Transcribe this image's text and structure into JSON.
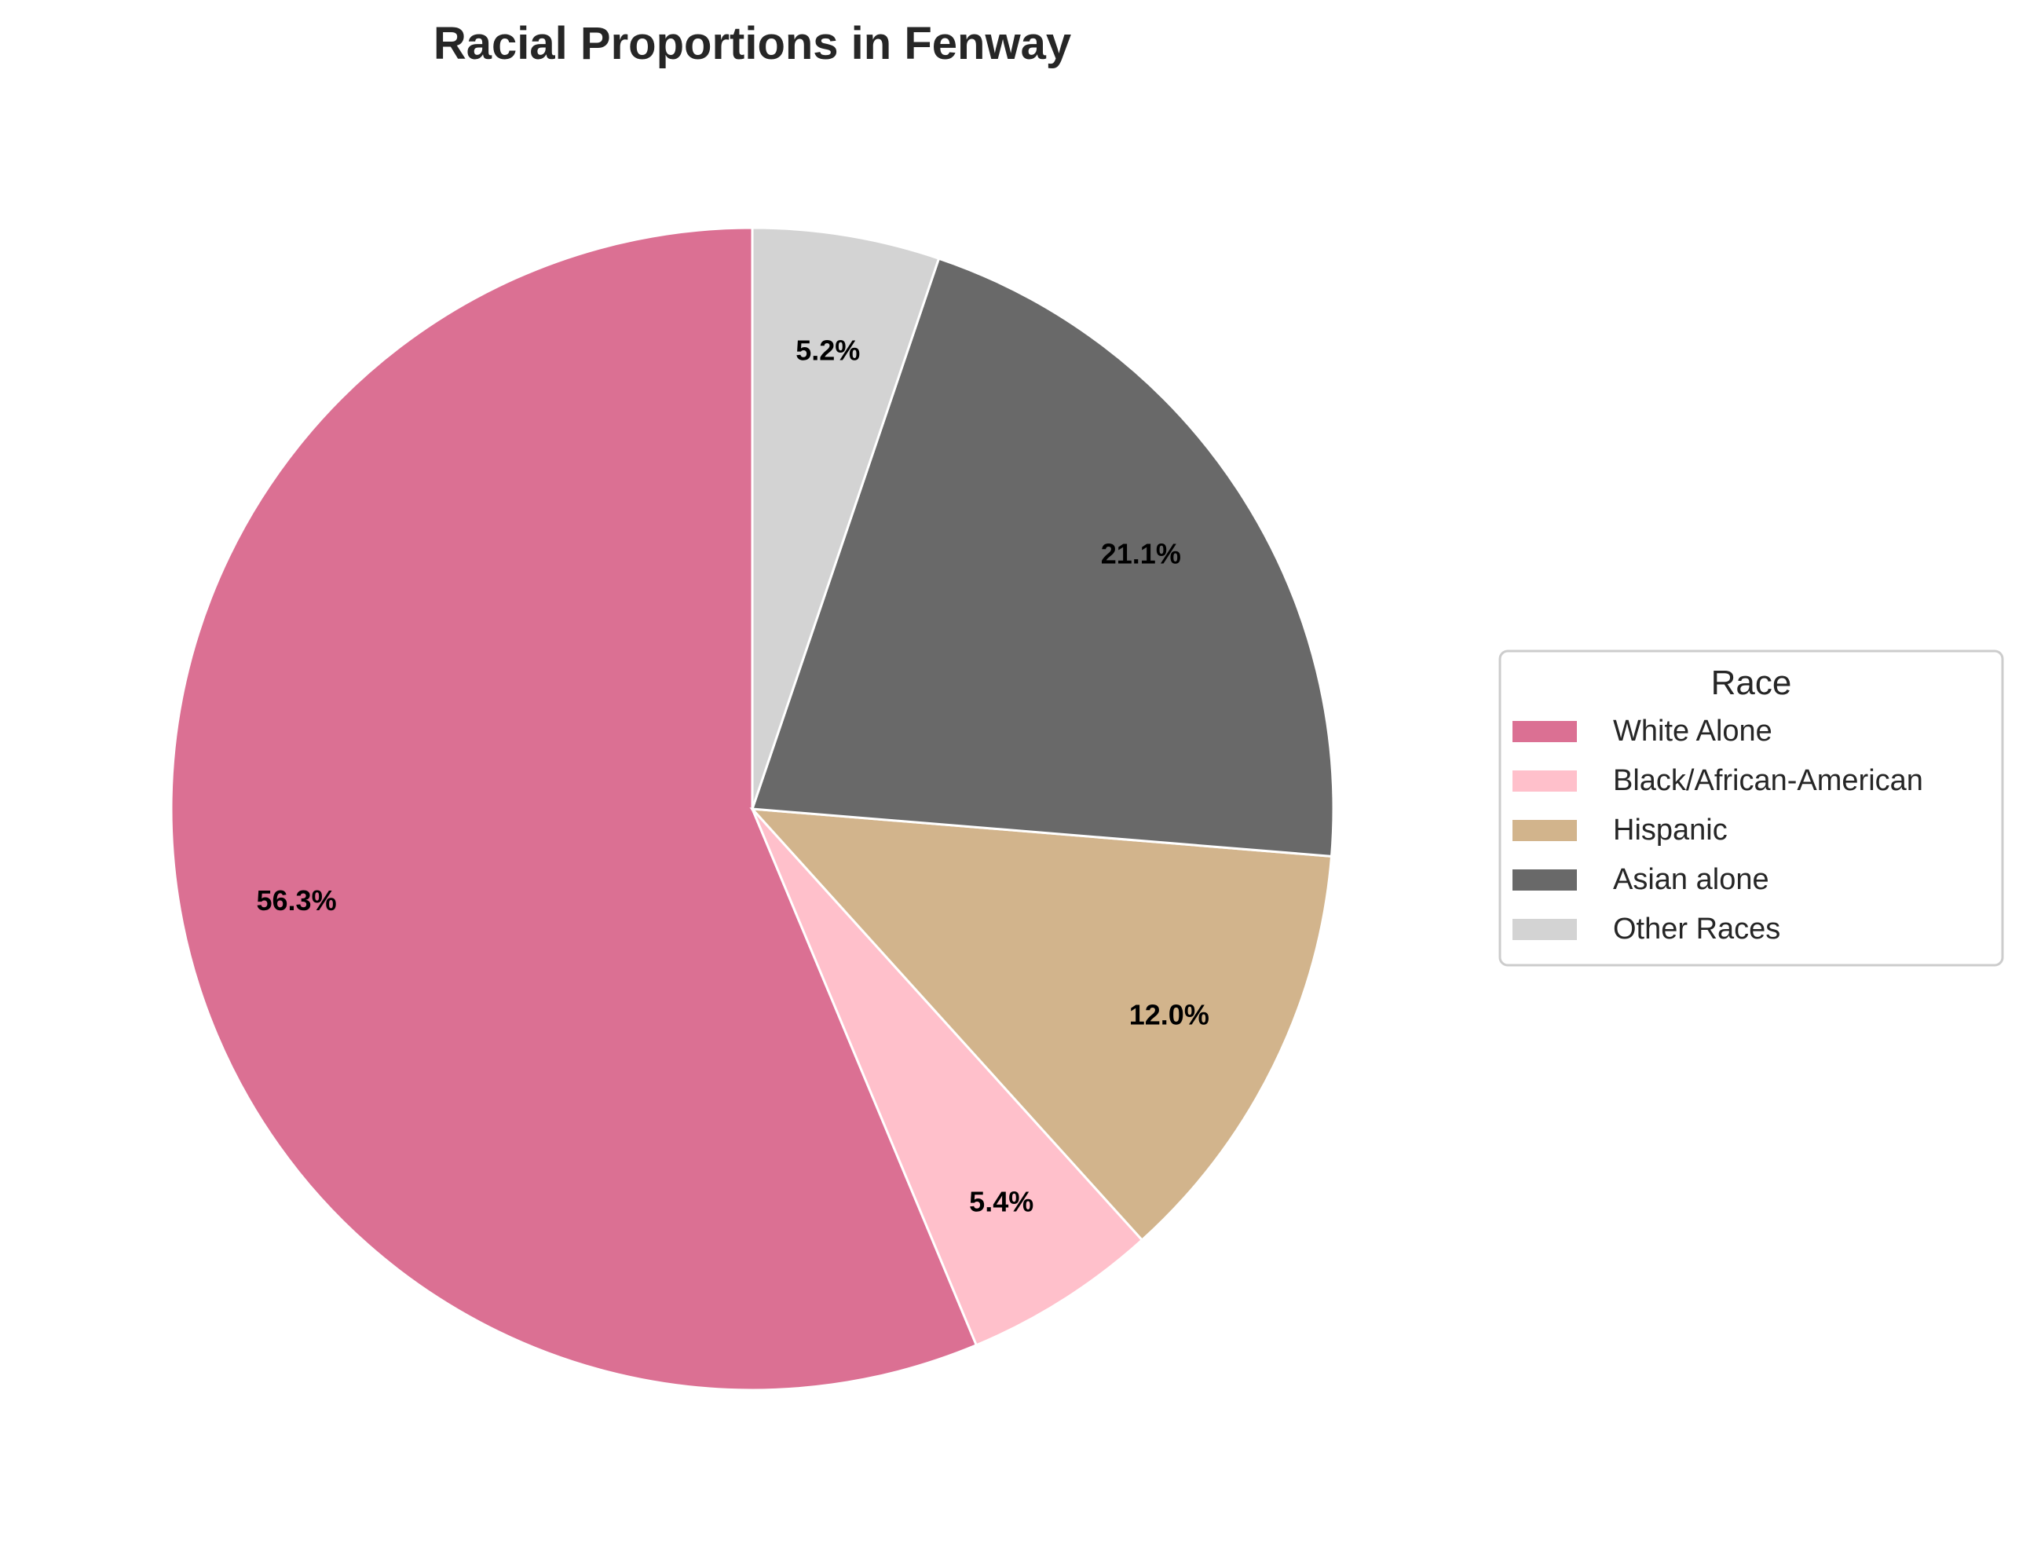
{
  "chart_data": {
    "type": "pie",
    "title": "Racial Proportions in Fenway",
    "categories": [
      "White Alone",
      "Black/African-American",
      "Hispanic",
      "Asian alone",
      "Other Races"
    ],
    "values": [
      56.3,
      5.4,
      12.0,
      21.1,
      5.2
    ],
    "labels": [
      "56.3%",
      "5.4%",
      "12.0%",
      "21.1%",
      "5.2%"
    ],
    "colors": [
      "#DB7093",
      "#FFC0CB",
      "#D2B48C",
      "#696969",
      "#D3D3D3"
    ],
    "start_angle_deg": 90,
    "direction": "counterclockwise",
    "legend": {
      "title": "Race",
      "placement": "right"
    }
  }
}
